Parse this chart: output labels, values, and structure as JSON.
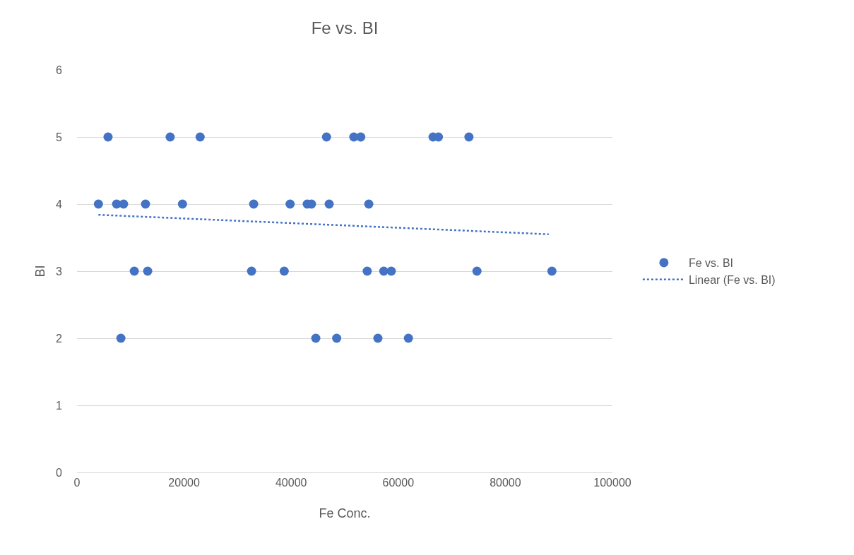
{
  "chart_data": {
    "type": "scatter",
    "title": "Fe vs. BI",
    "xlabel": "Fe Conc.",
    "ylabel": "BI",
    "xlim": [
      0,
      100000
    ],
    "xticks": [
      0,
      20000,
      40000,
      60000,
      80000,
      100000
    ],
    "ylim": [
      0,
      6
    ],
    "yticks": [
      0,
      1,
      2,
      3,
      4,
      5,
      6
    ],
    "grid": "y",
    "legend": "right",
    "marker": "circle",
    "series": [
      {
        "name": "Fe vs. BI",
        "color": "#4472c4",
        "x": [
          5800,
          17400,
          23000,
          46600,
          51700,
          53000,
          66500,
          67500,
          73200,
          4000,
          7400,
          8700,
          12800,
          19700,
          33000,
          39800,
          43000,
          43800,
          47100,
          54500,
          10700,
          13200,
          32600,
          38700,
          54200,
          57300,
          58700,
          74700,
          88700,
          8200,
          44600,
          48500,
          56200,
          61900
        ],
        "values": [
          5,
          5,
          5,
          5,
          5,
          5,
          5,
          5,
          5,
          4,
          4,
          4,
          4,
          4,
          4,
          4,
          4,
          4,
          4,
          4,
          3,
          3,
          3,
          3,
          3,
          3,
          3,
          3,
          3,
          2,
          2,
          2,
          2,
          2
        ]
      },
      {
        "name": "Linear (Fe vs. BI)",
        "type": "line",
        "color": "#4472c4",
        "line_style": "dotted",
        "marker": "none",
        "x": [
          4000,
          88100
        ],
        "values": [
          3.84,
          3.55
        ]
      }
    ]
  }
}
